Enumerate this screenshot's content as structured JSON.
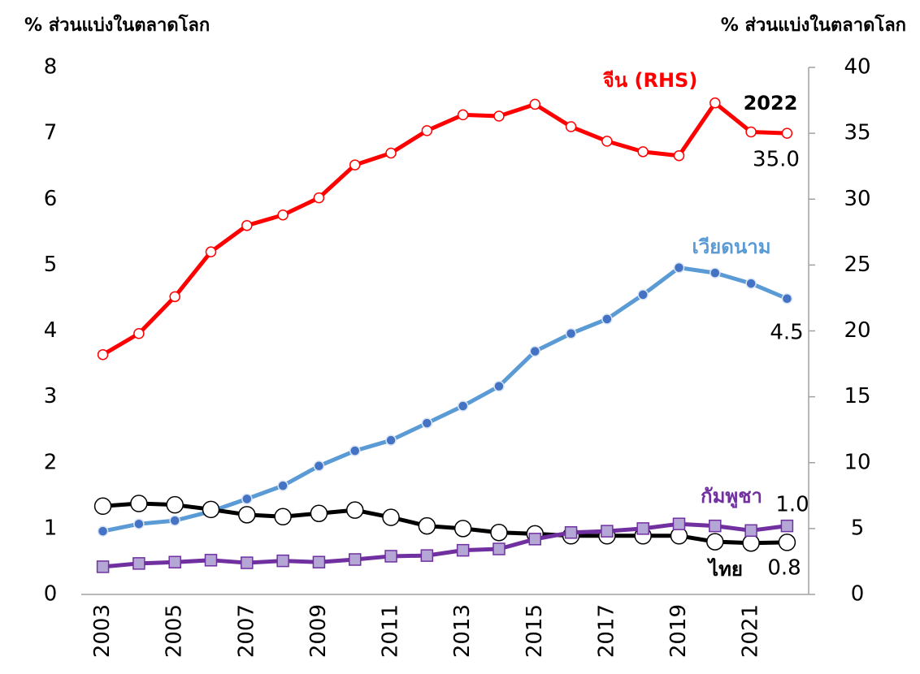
{
  "chart_data": {
    "type": "line",
    "y_label": "% ส่วนแบ่งในตลาดโลก",
    "y2_label": "% ส่วนแบ่งในตลาดโลก",
    "x": [
      2003,
      2004,
      2005,
      2006,
      2007,
      2008,
      2009,
      2010,
      2011,
      2012,
      2013,
      2014,
      2015,
      2016,
      2017,
      2018,
      2019,
      2020,
      2021,
      2022
    ],
    "xlim": [
      2002.4,
      2022.6
    ],
    "xticks": [
      2003,
      2005,
      2007,
      2009,
      2011,
      2013,
      2015,
      2017,
      2019,
      2021
    ],
    "ylim": [
      0,
      8
    ],
    "yticks": [
      0,
      1,
      2,
      3,
      4,
      5,
      6,
      7,
      8
    ],
    "y2lim": [
      0,
      40
    ],
    "y2ticks": [
      0,
      5,
      10,
      15,
      20,
      25,
      30,
      35,
      40
    ],
    "annotations": [
      "2022"
    ],
    "series": [
      {
        "name": "จีน (RHS)",
        "color": "#ff0000",
        "axis": "y2",
        "marker": "circle",
        "marker_fill": "#ffffff",
        "values": [
          18.2,
          19.8,
          22.6,
          26.0,
          28.0,
          28.8,
          30.1,
          32.6,
          33.5,
          35.2,
          36.4,
          36.3,
          37.2,
          35.5,
          34.4,
          33.6,
          33.3,
          37.3,
          35.1,
          35.0
        ],
        "value_labels": [
          null,
          null,
          null,
          null,
          null,
          null,
          null,
          null,
          null,
          null,
          null,
          null,
          null,
          null,
          null,
          null,
          null,
          null,
          null,
          "35.0"
        ]
      },
      {
        "name": "เวียดนาม",
        "color": "#5b9bd5",
        "marker": "circle",
        "marker_fill": "#4472c4",
        "values": [
          0.96,
          1.07,
          1.12,
          1.26,
          1.45,
          1.65,
          1.95,
          2.18,
          2.34,
          2.6,
          2.86,
          3.16,
          3.69,
          3.96,
          4.18,
          4.55,
          4.96,
          4.88,
          4.72,
          4.49
        ],
        "value_labels": [
          null,
          null,
          null,
          null,
          null,
          null,
          null,
          null,
          null,
          null,
          null,
          null,
          null,
          null,
          null,
          null,
          null,
          null,
          null,
          "4.5"
        ]
      },
      {
        "name": "ไทย",
        "color": "#000000",
        "marker": "big-circle",
        "marker_fill": "#ffffff",
        "values": [
          1.34,
          1.38,
          1.36,
          1.29,
          1.21,
          1.18,
          1.23,
          1.28,
          1.17,
          1.04,
          1.0,
          0.94,
          0.92,
          0.89,
          0.89,
          0.89,
          0.89,
          0.8,
          0.78,
          0.79
        ],
        "value_labels": [
          null,
          null,
          null,
          null,
          null,
          null,
          null,
          null,
          null,
          null,
          null,
          null,
          null,
          null,
          null,
          null,
          null,
          null,
          null,
          "0.8"
        ]
      },
      {
        "name": "กัมพูชา",
        "color": "#7030a0",
        "marker": "square",
        "marker_fill": "#b4a7d6",
        "values": [
          0.42,
          0.47,
          0.49,
          0.52,
          0.48,
          0.51,
          0.49,
          0.53,
          0.58,
          0.59,
          0.67,
          0.69,
          0.84,
          0.94,
          0.96,
          1.0,
          1.07,
          1.04,
          0.97,
          1.04
        ],
        "value_labels": [
          null,
          null,
          null,
          null,
          null,
          null,
          null,
          null,
          null,
          null,
          null,
          null,
          null,
          null,
          null,
          null,
          null,
          null,
          null,
          "1.0"
        ]
      }
    ]
  }
}
